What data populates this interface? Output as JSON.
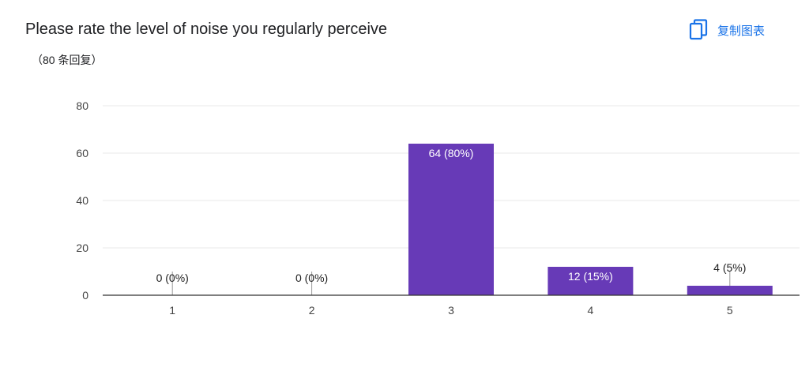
{
  "header": {
    "title": "Please rate the level of noise you regularly perceive",
    "response_count": "（80 条回复）",
    "copy_chart_label": "复制图表"
  },
  "colors": {
    "bar": "#673ab7",
    "accent": "#1a73e8",
    "grid": "#e8e8e8",
    "axis": "#333333"
  },
  "icons": {
    "copy": "copy-icon"
  },
  "chart_data": {
    "type": "bar",
    "categories": [
      "1",
      "2",
      "3",
      "4",
      "5"
    ],
    "values": [
      0,
      0,
      64,
      12,
      4
    ],
    "data_labels": [
      "0 (0%)",
      "0 (0%)",
      "64 (80%)",
      "12 (15%)",
      "4 (5%)"
    ],
    "ylim": [
      0,
      80
    ],
    "yticks": [
      0,
      20,
      40,
      60,
      80
    ],
    "xlabel": "",
    "ylabel": "",
    "grid": true,
    "legend": "none"
  }
}
